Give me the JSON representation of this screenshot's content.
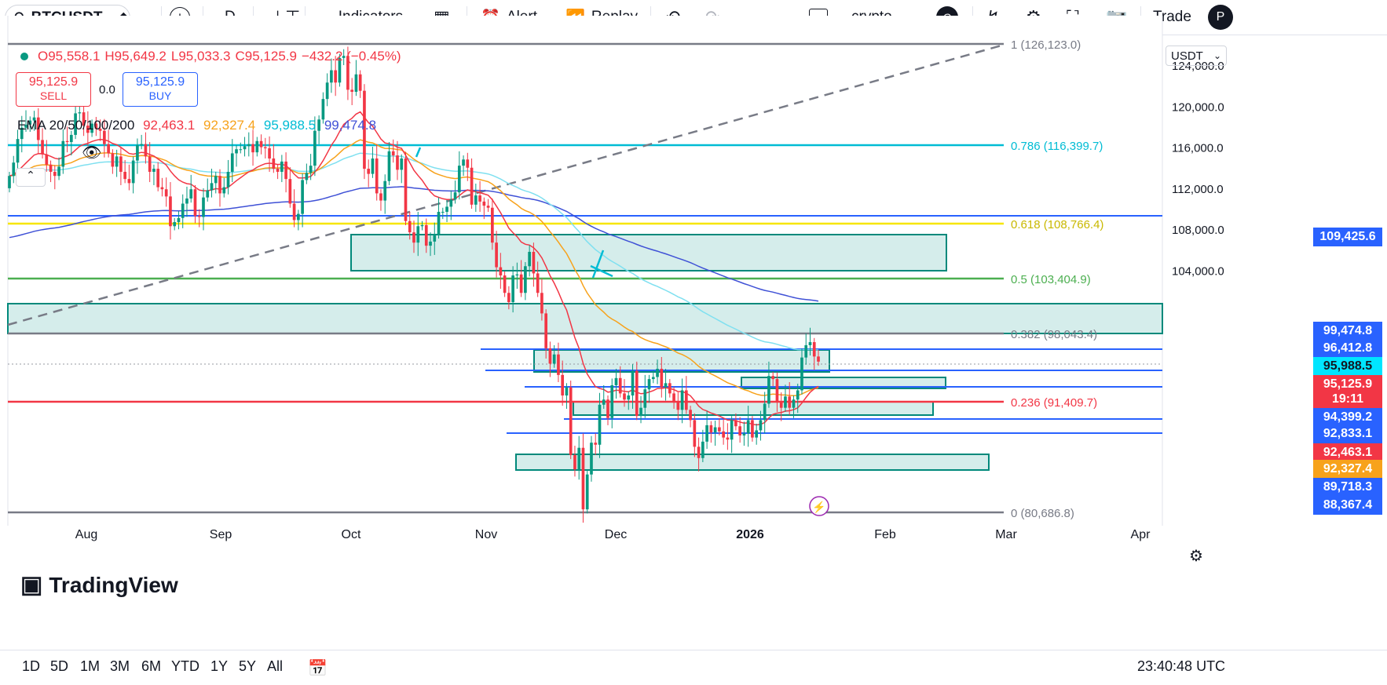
{
  "toolbar": {
    "symbol": "BTCUSDT",
    "interval": "D",
    "indicators": "Indicators",
    "alert": "Alert",
    "replay": "Replay",
    "layout_name": "crypto",
    "avatar_letter": "C",
    "trade": "Trade",
    "profile_letter": "P"
  },
  "legend": {
    "o": "O95,558.1",
    "h": "H95,649.2",
    "l": "L95,033.3",
    "c": "C95,125.9",
    "change": "−432.2 (−0.45%)",
    "sell_price": "95,125.9",
    "sell_label": "SELL",
    "spread": "0.0",
    "buy_price": "95,125.9",
    "buy_label": "BUY",
    "ema_label": "EMA 20/50/100/200",
    "ema20": "92,463.1",
    "ema50": "92,327.4",
    "ema100": "95,988.5",
    "ema200": "99,474.8"
  },
  "currency": "USDT",
  "colors": {
    "up": "#089981",
    "down": "#f23645",
    "ema20": "#f23645",
    "ema50": "#f7a21b",
    "ema100": "#7fe0f0",
    "ema200": "#3f51d6",
    "zone": "#b2dfdb",
    "zone_border": "#00897b"
  },
  "chart_data": {
    "type": "candlestick",
    "x_ticks": [
      "Aug",
      "Sep",
      "Oct",
      "Nov",
      "Dec",
      "2026",
      "Feb",
      "Mar",
      "Apr"
    ],
    "y_ticks": [
      "124,000.0",
      "120,000.0",
      "116,000.0",
      "112,000.0",
      "108,000.0",
      "104,000.0"
    ],
    "ylim": [
      80000,
      126500
    ],
    "fib_levels": [
      {
        "label": "1 (126,123.0)",
        "value": 126123.0,
        "color": "#787b86"
      },
      {
        "label": "0.786 (116,399.7)",
        "value": 116399.7,
        "color": "#00bcd4"
      },
      {
        "label": "0.618 (108,766.4)",
        "value": 108766.4,
        "color": "#f7e600"
      },
      {
        "label": "0.5 (103,404.9)",
        "value": 103404.9,
        "color": "#4caf50"
      },
      {
        "label": "0.382 (98,043.4)",
        "value": 98043.4,
        "color": "#787b86"
      },
      {
        "label": "0.236 (91,409.7)",
        "value": 91409.7,
        "color": "#f23645"
      },
      {
        "label": "0 (80,686.8)",
        "value": 80686.8,
        "color": "#787b86"
      }
    ],
    "price_tags": [
      {
        "label": "109,425.6",
        "value": 109425.6,
        "color": "#2962ff"
      },
      {
        "label": "99,474.8",
        "value": 99474.8,
        "color": "#2962ff"
      },
      {
        "label": "96,412.8",
        "value": 96412.8,
        "color": "#2962ff"
      },
      {
        "label": "95,988.5",
        "value": 95988.5,
        "color": "#00bcd4"
      },
      {
        "label": "95,125.9",
        "value": 95125.9,
        "color": "#f23645"
      },
      {
        "label": "19:11",
        "value": 94500,
        "color": "#f23645"
      },
      {
        "label": "94,399.2",
        "value": 93800,
        "color": "#2962ff"
      },
      {
        "label": "92,833.1",
        "value": 92400,
        "color": "#2962ff"
      },
      {
        "label": "92,463.1",
        "value": 91000,
        "color": "#f23645"
      },
      {
        "label": "92,327.4",
        "value": 89600,
        "color": "#f7a21b"
      },
      {
        "label": "89,718.3",
        "value": 88200,
        "color": "#2962ff"
      },
      {
        "label": "88,367.4",
        "value": 86800,
        "color": "#2962ff"
      }
    ],
    "closes": [
      113200,
      114500,
      116800,
      117900,
      118200,
      118600,
      118900,
      116700,
      115300,
      114300,
      113600,
      113200,
      114100,
      116600,
      116500,
      117200,
      119300,
      119400,
      118100,
      117400,
      118300,
      117800,
      117600,
      116300,
      115400,
      114100,
      115100,
      113600,
      112900,
      112500,
      114700,
      116200,
      116300,
      115100,
      113600,
      113900,
      112100,
      111900,
      111200,
      108300,
      108700,
      109100,
      110500,
      111000,
      111900,
      109300,
      109200,
      111100,
      111800,
      112500,
      113200,
      111500,
      112100,
      113600,
      115400,
      115800,
      115800,
      116100,
      116300,
      115500,
      116600,
      116000,
      115900,
      114900,
      113900,
      113600,
      114600,
      112900,
      110500,
      108900,
      109500,
      112800,
      113500,
      114200,
      117600,
      118700,
      120700,
      122300,
      123500,
      122300,
      124700,
      124900,
      121600,
      121400,
      123100,
      121500,
      113900,
      113400,
      114900,
      111500,
      110800,
      112700,
      115600,
      115200,
      113800,
      114900,
      108800,
      107700,
      106700,
      108300,
      108400,
      106400,
      106800,
      107500,
      109700,
      109700,
      110200,
      110900,
      111600,
      114200,
      114800,
      114000,
      110400,
      111300,
      110700,
      110300,
      110100,
      106700,
      104300,
      103500,
      101800,
      100900,
      103500,
      103600,
      101800,
      104400,
      105800,
      103700,
      101800,
      99800,
      96400,
      94900,
      95800,
      93800,
      91800,
      92600,
      86000,
      84600,
      86700,
      80700,
      84100,
      87200,
      87000,
      90900,
      91400,
      89600,
      92800,
      93500,
      92000,
      91400,
      91800,
      94200,
      89800,
      90600,
      92400,
      93400,
      93600,
      94400,
      92600,
      93000,
      92000,
      91200,
      90400,
      92300,
      90400,
      89400,
      86800,
      85700,
      87300,
      88900,
      88200,
      88700,
      88300,
      87700,
      87500,
      89400,
      88800,
      87900,
      88100,
      89400,
      87700,
      88400,
      89400,
      91000,
      93700,
      93400,
      91200,
      90600,
      91700,
      90600,
      91400,
      92300,
      95500,
      96700,
      97000,
      95600,
      95100
    ]
  },
  "bottom": {
    "ranges": [
      "1D",
      "5D",
      "1M",
      "3M",
      "6M",
      "YTD",
      "1Y",
      "5Y",
      "All"
    ],
    "clock": "23:40:48 UTC"
  },
  "brand": "TradingView"
}
